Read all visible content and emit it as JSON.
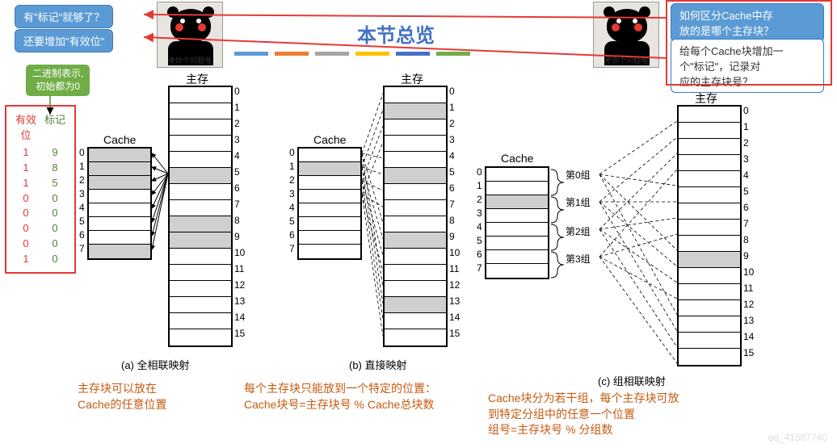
{
  "title": "本节总览",
  "bubbles": {
    "q1": "有\"标记\"就够了？",
    "q2": "还要增加\"有效位\"",
    "q3": "如何区分Cache中存\n放的是哪个主存块？",
    "q4": "给每个Cache块增加一\n个\"标记\"，记录对\n应的主存块号？"
  },
  "green_box": "二进制表示,\n初始都为0",
  "bear_caption": "考你个问题哦",
  "color_bars": [
    "#5b9bd5",
    "#ed7d31",
    "#a5a5a5",
    "#ffc000",
    "#4472c4",
    "#70ad47"
  ],
  "tables": {
    "cache_label": "Cache",
    "mem_label": "主存",
    "cache_rows": 8,
    "mem_rows": 16,
    "a_cache_shaded": [
      0,
      1,
      2,
      7
    ],
    "a_mem_shaded": [
      5,
      8,
      9
    ],
    "b_cache_shaded": [
      1
    ],
    "b_mem_shaded": [
      1,
      5,
      9,
      13
    ],
    "c_cache_shaded": [
      2
    ],
    "c_mem_shaded": [
      9
    ]
  },
  "groups": [
    "第0组",
    "第1组",
    "第2组",
    "第3组"
  ],
  "captions": {
    "a": "(a) 全相联映射",
    "b": "(b) 直接映射",
    "c": "(c) 组相联映射"
  },
  "descriptions": {
    "a": "主存块可以放在\nCache的任意位置",
    "b": "每个主存块只能放到一个特定的位置：\nCache块号=主存块号 % Cache总块数",
    "c": "Cache块分为若干组，每个主存块可放\n到特定分组中的任意一个位置\n组号=主存块号 % 分组数"
  },
  "valid_table": {
    "headers": [
      "有效\n位",
      "标记"
    ],
    "rows": [
      [
        1,
        9
      ],
      [
        1,
        8
      ],
      [
        1,
        5
      ],
      [
        0,
        0
      ],
      [
        0,
        0
      ],
      [
        0,
        0
      ],
      [
        0,
        0
      ],
      [
        1,
        0
      ]
    ]
  },
  "watermark": "qq_41587740"
}
